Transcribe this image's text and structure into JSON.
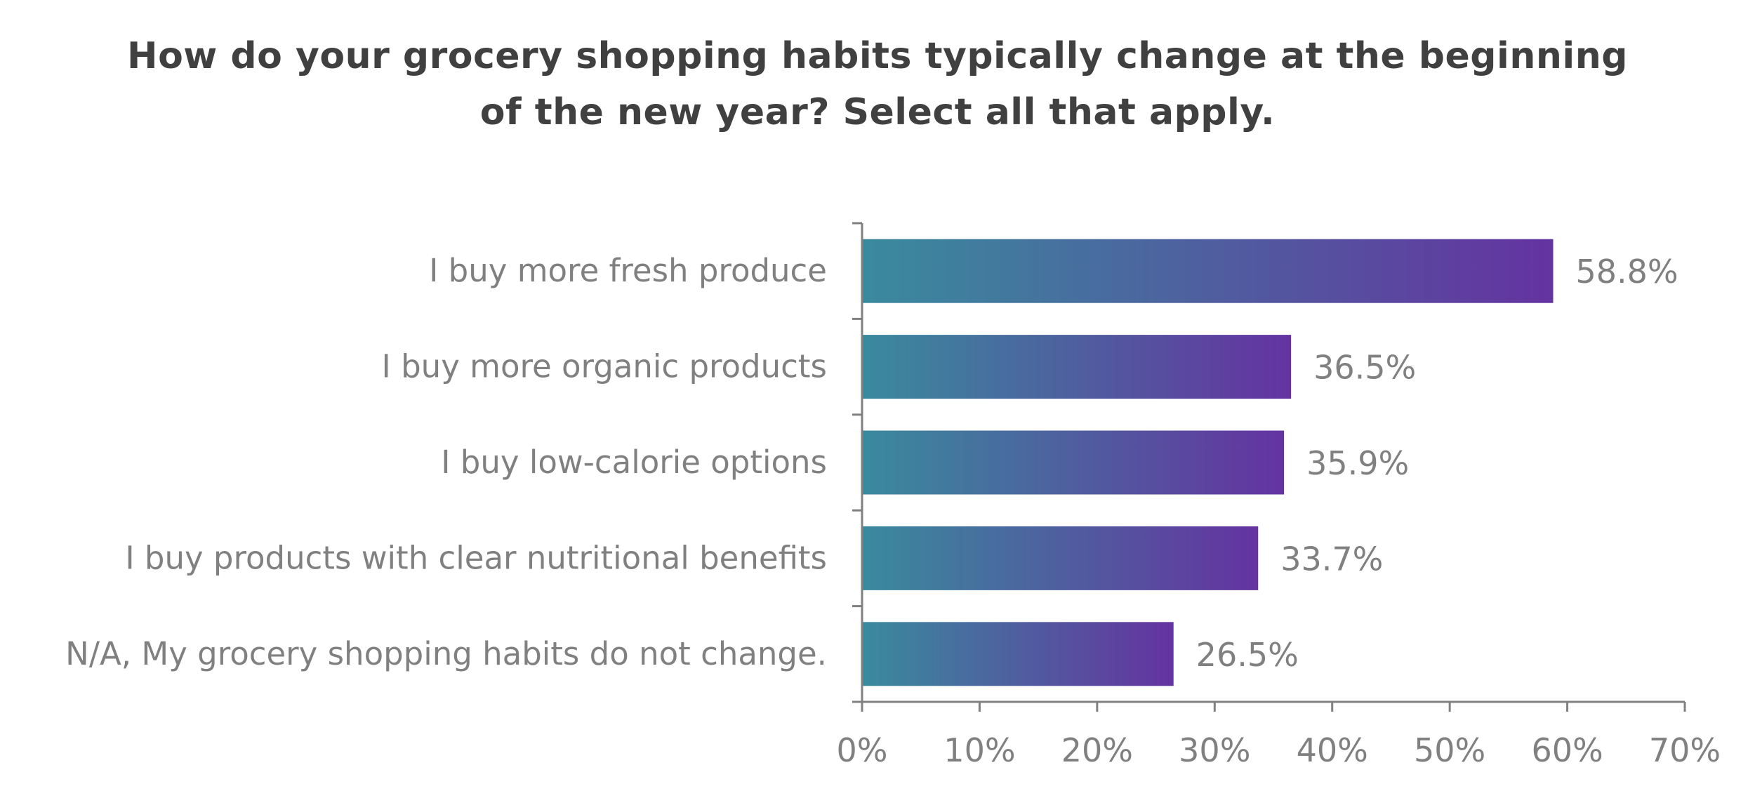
{
  "chart_data": {
    "type": "bar",
    "orientation": "horizontal",
    "title": "How do your grocery shopping habits typically change at the beginning of the new year? Select all that apply.",
    "categories": [
      "I buy more fresh produce",
      "I buy more organic products",
      "I buy low-calorie options",
      "I buy products with clear nutritional benefits",
      "N/A, My grocery shopping habits do not change."
    ],
    "values": [
      58.8,
      36.5,
      35.9,
      33.7,
      26.5
    ],
    "value_labels": [
      "58.8%",
      "36.5%",
      "35.9%",
      "33.7%",
      "26.5%"
    ],
    "xlim": [
      0,
      70
    ],
    "xticks": [
      0,
      10,
      20,
      30,
      40,
      50,
      60,
      70
    ],
    "xtick_labels": [
      "0%",
      "10%",
      "20%",
      "30%",
      "40%",
      "50%",
      "60%",
      "70%"
    ],
    "xlabel": "",
    "ylabel": "",
    "grid": false,
    "legend": "none",
    "colors": {
      "bar_gradient_start": "#3a8a9e",
      "bar_gradient_end": "#6433a0",
      "axis": "#808080",
      "label_text": "#808080",
      "title_text": "#404040"
    }
  }
}
